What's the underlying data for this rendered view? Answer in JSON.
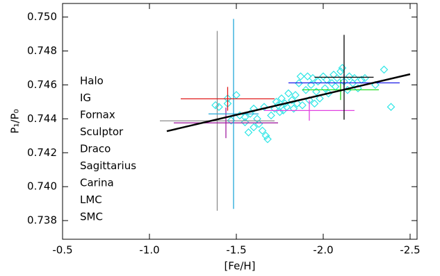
{
  "chart_data": {
    "type": "scatter",
    "xlabel": "[Fe/H]",
    "ylabel": "P₁/P₀",
    "xlim": [
      -0.5,
      -2.54
    ],
    "ylim": [
      0.7369,
      0.7508
    ],
    "xticks": [
      {
        "value": -0.5,
        "label": "-0.5"
      },
      {
        "value": -1.0,
        "label": "-1.0"
      },
      {
        "value": -1.5,
        "label": "-1.5"
      },
      {
        "value": -2.0,
        "label": "-2.0"
      },
      {
        "value": -2.5,
        "label": "-2.5"
      }
    ],
    "yticks": [
      {
        "value": 0.738,
        "label": "0.738"
      },
      {
        "value": 0.74,
        "label": "0.740"
      },
      {
        "value": 0.742,
        "label": "0.742"
      },
      {
        "value": 0.744,
        "label": "0.744"
      },
      {
        "value": 0.746,
        "label": "0.746"
      },
      {
        "value": 0.748,
        "label": "0.748"
      },
      {
        "value": 0.75,
        "label": "0.750"
      }
    ],
    "series": [
      {
        "name": "Halo",
        "color": "#2ee6e6",
        "x": [
          -1.38,
          -1.4,
          -1.45,
          -1.47,
          -1.5,
          -1.52,
          -1.55,
          -1.57,
          -1.58,
          -1.6,
          -1.62,
          -1.63,
          -1.65,
          -1.66,
          -1.67,
          -1.68,
          -1.7,
          -1.72,
          -1.73,
          -1.74,
          -1.75,
          -1.76,
          -1.77,
          -1.78,
          -1.79,
          -1.8,
          -1.82,
          -1.83,
          -1.84,
          -1.85,
          -1.86,
          -1.87,
          -1.88,
          -1.9,
          -1.91,
          -1.92,
          -1.93,
          -1.94,
          -1.95,
          -1.96,
          -1.97,
          -1.98,
          -2.0,
          -2.01,
          -2.02,
          -2.03,
          -2.05,
          -2.06,
          -2.07,
          -2.08,
          -2.1,
          -2.11,
          -2.12,
          -2.14,
          -2.15,
          -2.17,
          -2.18,
          -2.2,
          -2.22,
          -2.24,
          -2.3,
          -2.35,
          -2.39,
          -1.45,
          -1.55,
          -1.6
        ],
        "values": [
          0.7448,
          0.7447,
          0.7452,
          0.7439,
          0.7454,
          0.7442,
          0.7441,
          0.7432,
          0.7443,
          0.7446,
          0.744,
          0.7437,
          0.7433,
          0.7447,
          0.743,
          0.7428,
          0.7442,
          0.7446,
          0.745,
          0.7448,
          0.7444,
          0.7452,
          0.7445,
          0.7449,
          0.7447,
          0.7455,
          0.7451,
          0.7446,
          0.7454,
          0.7449,
          0.7461,
          0.7465,
          0.7448,
          0.7457,
          0.7465,
          0.7451,
          0.746,
          0.7464,
          0.7449,
          0.7456,
          0.7462,
          0.7452,
          0.7465,
          0.7458,
          0.7463,
          0.7455,
          0.7461,
          0.7466,
          0.7459,
          0.7464,
          0.7468,
          0.747,
          0.7462,
          0.7457,
          0.7465,
          0.7461,
          0.7464,
          0.7458,
          0.7463,
          0.7464,
          0.746,
          0.7469,
          0.7447,
          0.7449,
          0.7438,
          0.7435
        ]
      },
      {
        "name": "IG",
        "color": "#8c8c8c",
        "x": [
          -1.39
        ],
        "xerr": [
          0.33
        ],
        "values": [
          0.74388
        ],
        "yerr": [
          0.0053
        ]
      },
      {
        "name": "Fornax",
        "color": "#22dd22",
        "x": [
          -2.1
        ],
        "xerr": [
          0.22
        ],
        "values": [
          0.74571
        ],
        "yerr": [
          0.0006
        ]
      },
      {
        "name": "Sculptor",
        "color": "#e040e0",
        "x": [
          -1.92
        ],
        "xerr": [
          0.26
        ],
        "values": [
          0.74449
        ],
        "yerr": [
          0.0006
        ]
      },
      {
        "name": "Draco",
        "color": "#1a1ae6",
        "x": [
          -2.12
        ],
        "xerr": [
          0.32
        ],
        "values": [
          0.74612
        ],
        "yerr": [
          0.0005
        ]
      },
      {
        "name": "Sagittarius",
        "color": "#a020a0",
        "x": [
          -1.44
        ],
        "xerr": [
          0.3
        ],
        "values": [
          0.74376
        ],
        "yerr": [
          0.0009
        ]
      },
      {
        "name": "Carina",
        "color": "#000000",
        "x": [
          -2.12
        ],
        "xerr": [
          0.17
        ],
        "values": [
          0.74645
        ],
        "yerr": [
          0.0025
        ]
      },
      {
        "name": "LMC",
        "color": "#22a8d8",
        "x": [
          -1.484
        ],
        "xerr": [
          0.144
        ],
        "values": [
          0.74429
        ],
        "yerr": [
          0.0056
        ]
      },
      {
        "name": "SMC",
        "color": "#e01a1a",
        "x": [
          -1.45
        ],
        "xerr": [
          0.27
        ],
        "values": [
          0.74518
        ],
        "yerr": [
          0.0007
        ]
      }
    ],
    "fit": {
      "color": "#000000",
      "x": [
        -1.1,
        -2.5
      ],
      "values": [
        0.74327,
        0.74663
      ]
    }
  }
}
